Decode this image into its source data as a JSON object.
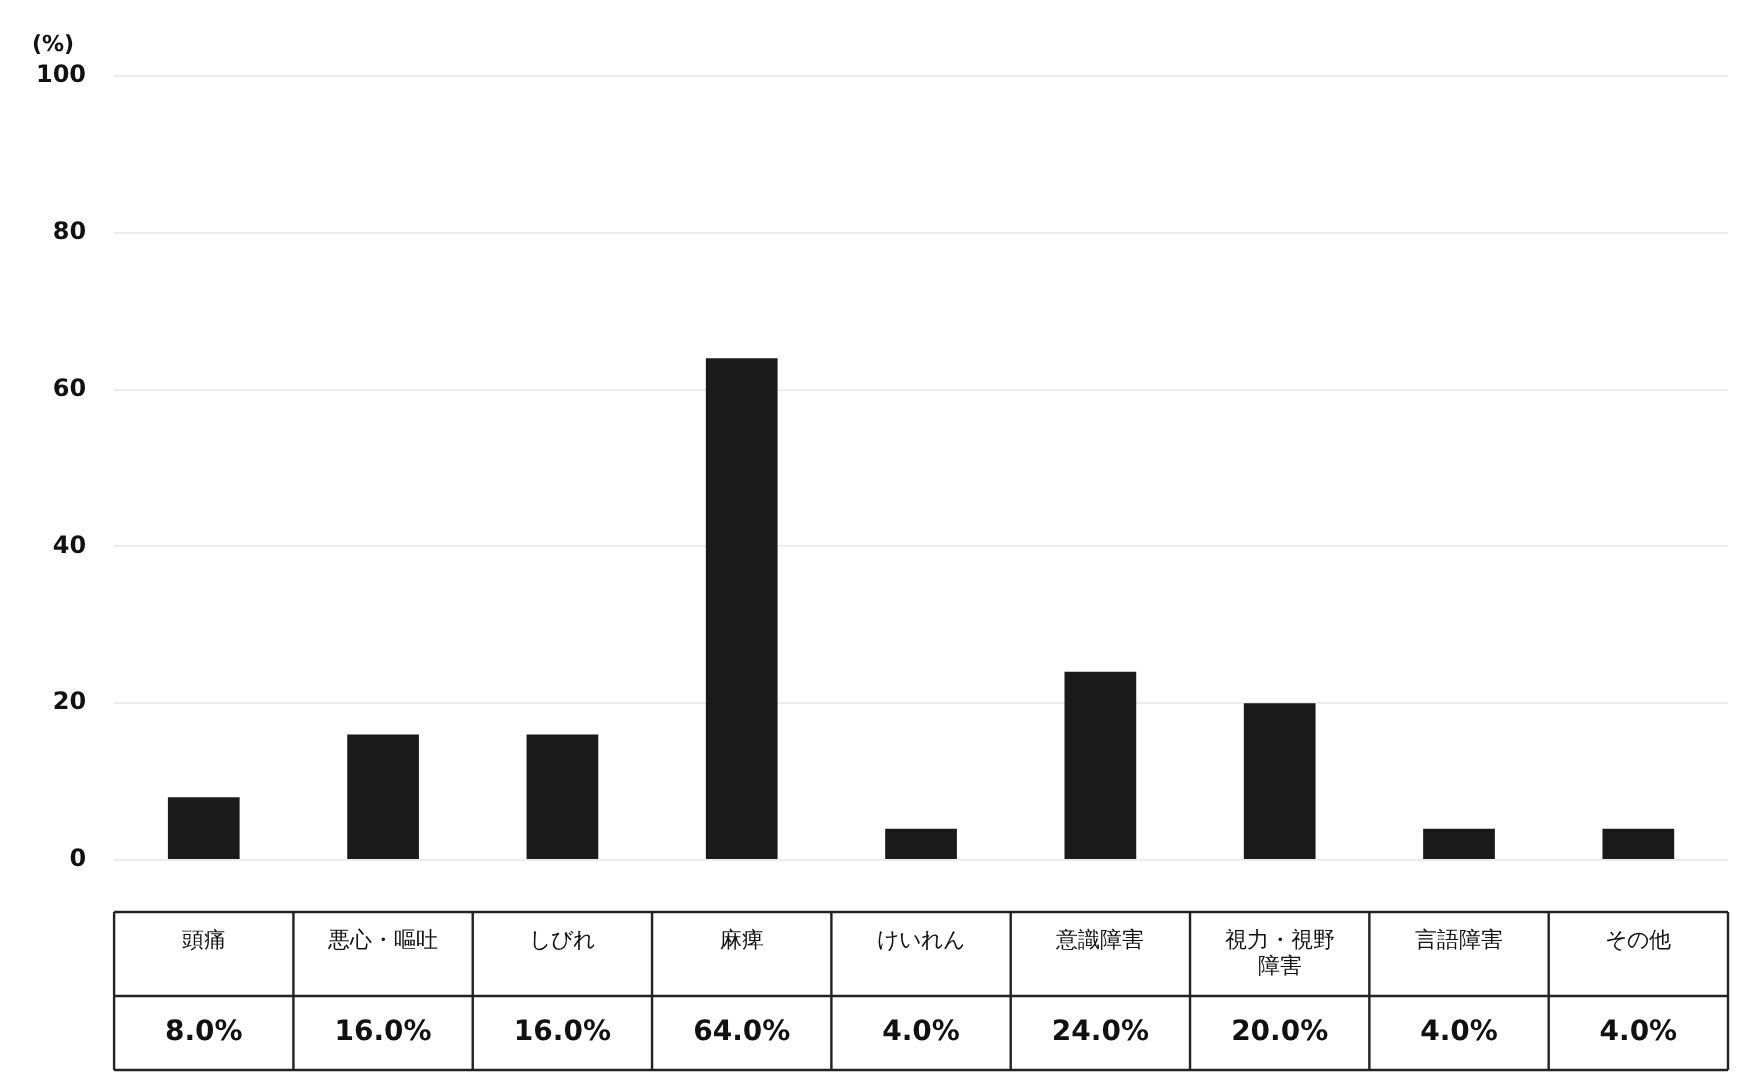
{
  "chart_data": {
    "type": "bar",
    "ylabel": "(%)",
    "categories": [
      "頭痛",
      "悪心・嘔吐",
      "しびれ",
      "麻痺",
      "けいれん",
      "意識障害",
      "視力・視野障害",
      "言語障害",
      "その他"
    ],
    "values": [
      8.0,
      16.0,
      16.0,
      64.0,
      4.0,
      24.0,
      20.0,
      4.0,
      4.0
    ],
    "value_labels": [
      "8.0%",
      "16.0%",
      "16.0%",
      "64.0%",
      "4.0%",
      "24.0%",
      "20.0%",
      "4.0%",
      "4.0%"
    ],
    "color": "#1a1a1a",
    "ylim": [
      0,
      100
    ],
    "yticks": [
      0,
      20,
      40,
      60,
      80,
      100
    ],
    "grid": "y",
    "legend": false
  }
}
